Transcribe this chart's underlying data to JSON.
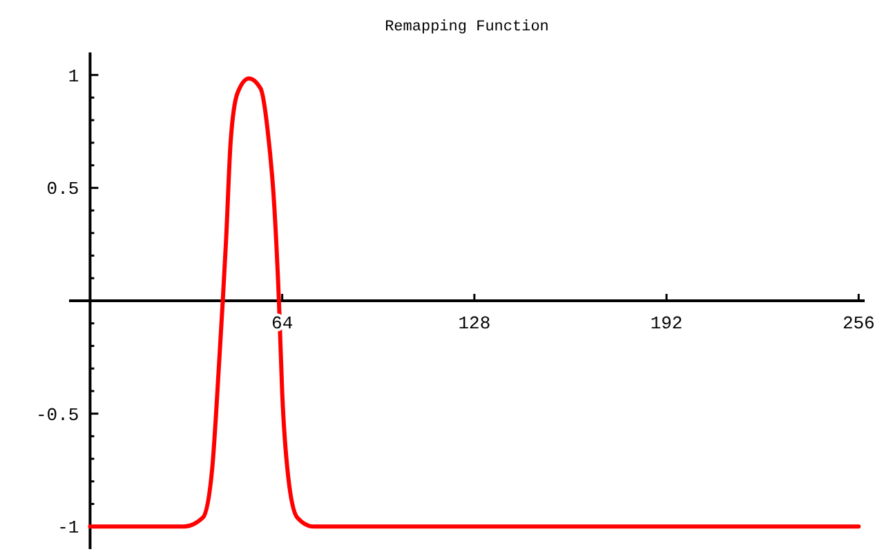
{
  "chart_data": {
    "type": "line",
    "title": "Remapping Function",
    "x": [
      0,
      31.3,
      37.6,
      40.7,
      43,
      44.2,
      45.3,
      46.8,
      49.1,
      52.9,
      56.8,
      59.1,
      61.4,
      62.9,
      64,
      66,
      69,
      74.4,
      256
    ],
    "series": [
      {
        "color": "#ff0000",
        "values": [
          -1,
          -1,
          -0.96,
          -0.74,
          -0.27,
          0,
          0.27,
          0.7,
          0.92,
          0.985,
          0.94,
          0.76,
          0.41,
          0,
          -0.41,
          -0.78,
          -0.96,
          -1,
          -1
        ]
      }
    ],
    "xlim": [
      -7,
      258
    ],
    "xticks": [
      64,
      128,
      192,
      256
    ],
    "ylim": [
      -1.1,
      1.1
    ],
    "yticks": [
      -1,
      {
        "value": -0.9,
        "label": null
      },
      {
        "value": -0.8,
        "label": null
      },
      {
        "value": -0.7,
        "label": null
      },
      {
        "value": -0.6,
        "label": null
      },
      -0.5,
      {
        "value": -0.4,
        "label": null
      },
      {
        "value": -0.3,
        "label": null
      },
      {
        "value": -0.2,
        "label": null
      },
      {
        "value": -0.1,
        "label": null
      },
      {
        "value": 0.1,
        "label": null
      },
      {
        "value": 0.2,
        "label": null
      },
      {
        "value": 0.3,
        "label": null
      },
      {
        "value": 0.4,
        "label": null
      },
      0.5,
      {
        "value": 0.6,
        "label": null
      },
      {
        "value": 0.7,
        "label": null
      },
      {
        "value": 0.8,
        "label": null
      },
      {
        "value": 0.9,
        "label": null
      },
      1
    ],
    "grid": false,
    "marker": "none",
    "line_style": "solid"
  }
}
